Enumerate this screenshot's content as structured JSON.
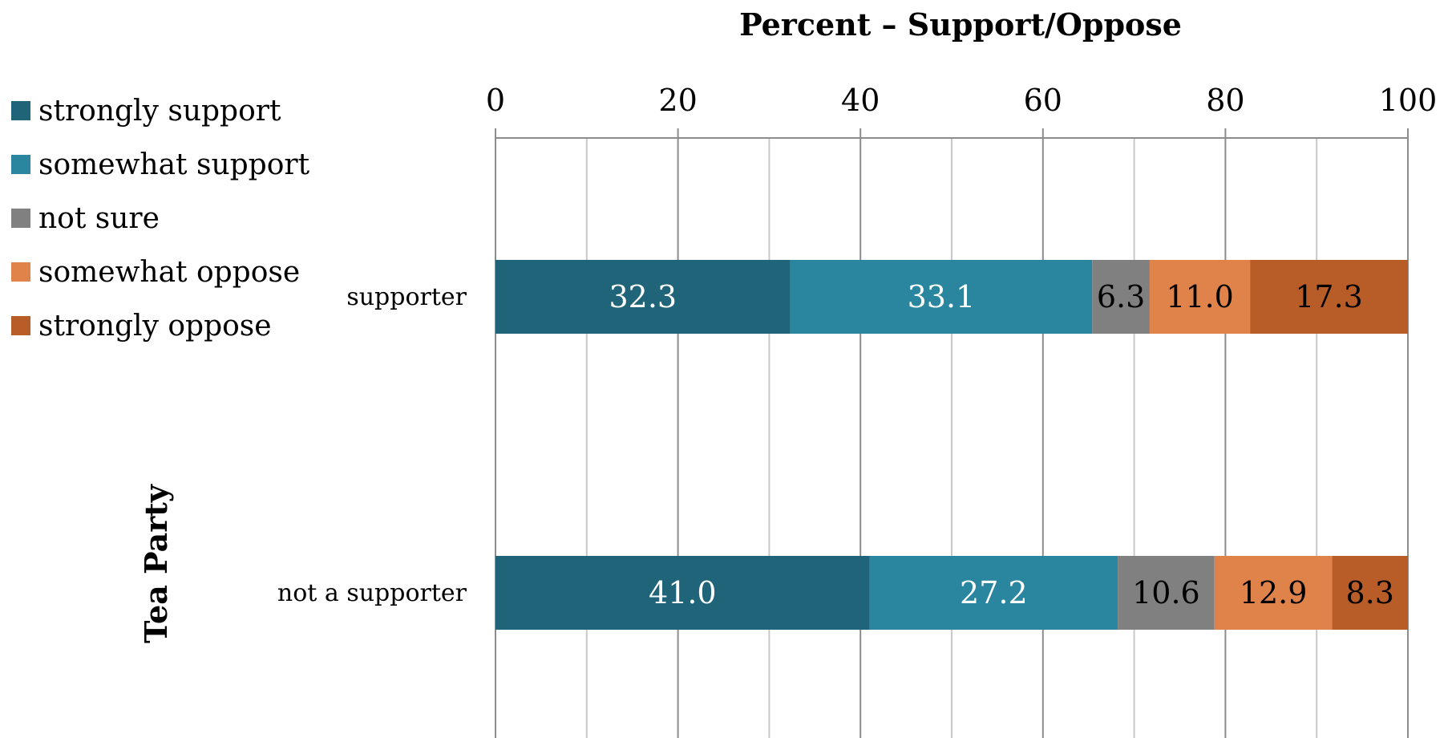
{
  "chart_data": {
    "type": "bar",
    "orientation": "horizontal",
    "stacked": true,
    "title": "",
    "xlabel": "Percent – Support/Oppose",
    "ylabel": "Tea Party",
    "xlim": [
      0,
      100
    ],
    "x_ticks": [
      "0",
      "20",
      "40",
      "60",
      "80",
      "100"
    ],
    "grid": true,
    "legend_position": "left",
    "categories": [
      "supporter",
      "not a supporter"
    ],
    "series": [
      {
        "name": "strongly support",
        "color": "#1f6478",
        "label_color": "#ffffff",
        "values": [
          32.3,
          41.0
        ],
        "labels": [
          "32.3",
          "41.0"
        ]
      },
      {
        "name": "somewhat support",
        "color": "#2a869f",
        "label_color": "#ffffff",
        "values": [
          33.1,
          27.2
        ],
        "labels": [
          "33.1",
          "27.2"
        ]
      },
      {
        "name": "not sure",
        "color": "#808080",
        "label_color": "#000000",
        "values": [
          6.3,
          10.6
        ],
        "labels": [
          "6.3",
          "10.6"
        ]
      },
      {
        "name": "somewhat oppose",
        "color": "#e0834b",
        "label_color": "#000000",
        "values": [
          11.0,
          12.9
        ],
        "labels": [
          "11.0",
          "12.9"
        ]
      },
      {
        "name": "strongly oppose",
        "color": "#b85c28",
        "label_color": "#000000",
        "values": [
          17.3,
          8.3
        ],
        "labels": [
          "17.3",
          "8.3"
        ]
      }
    ]
  }
}
